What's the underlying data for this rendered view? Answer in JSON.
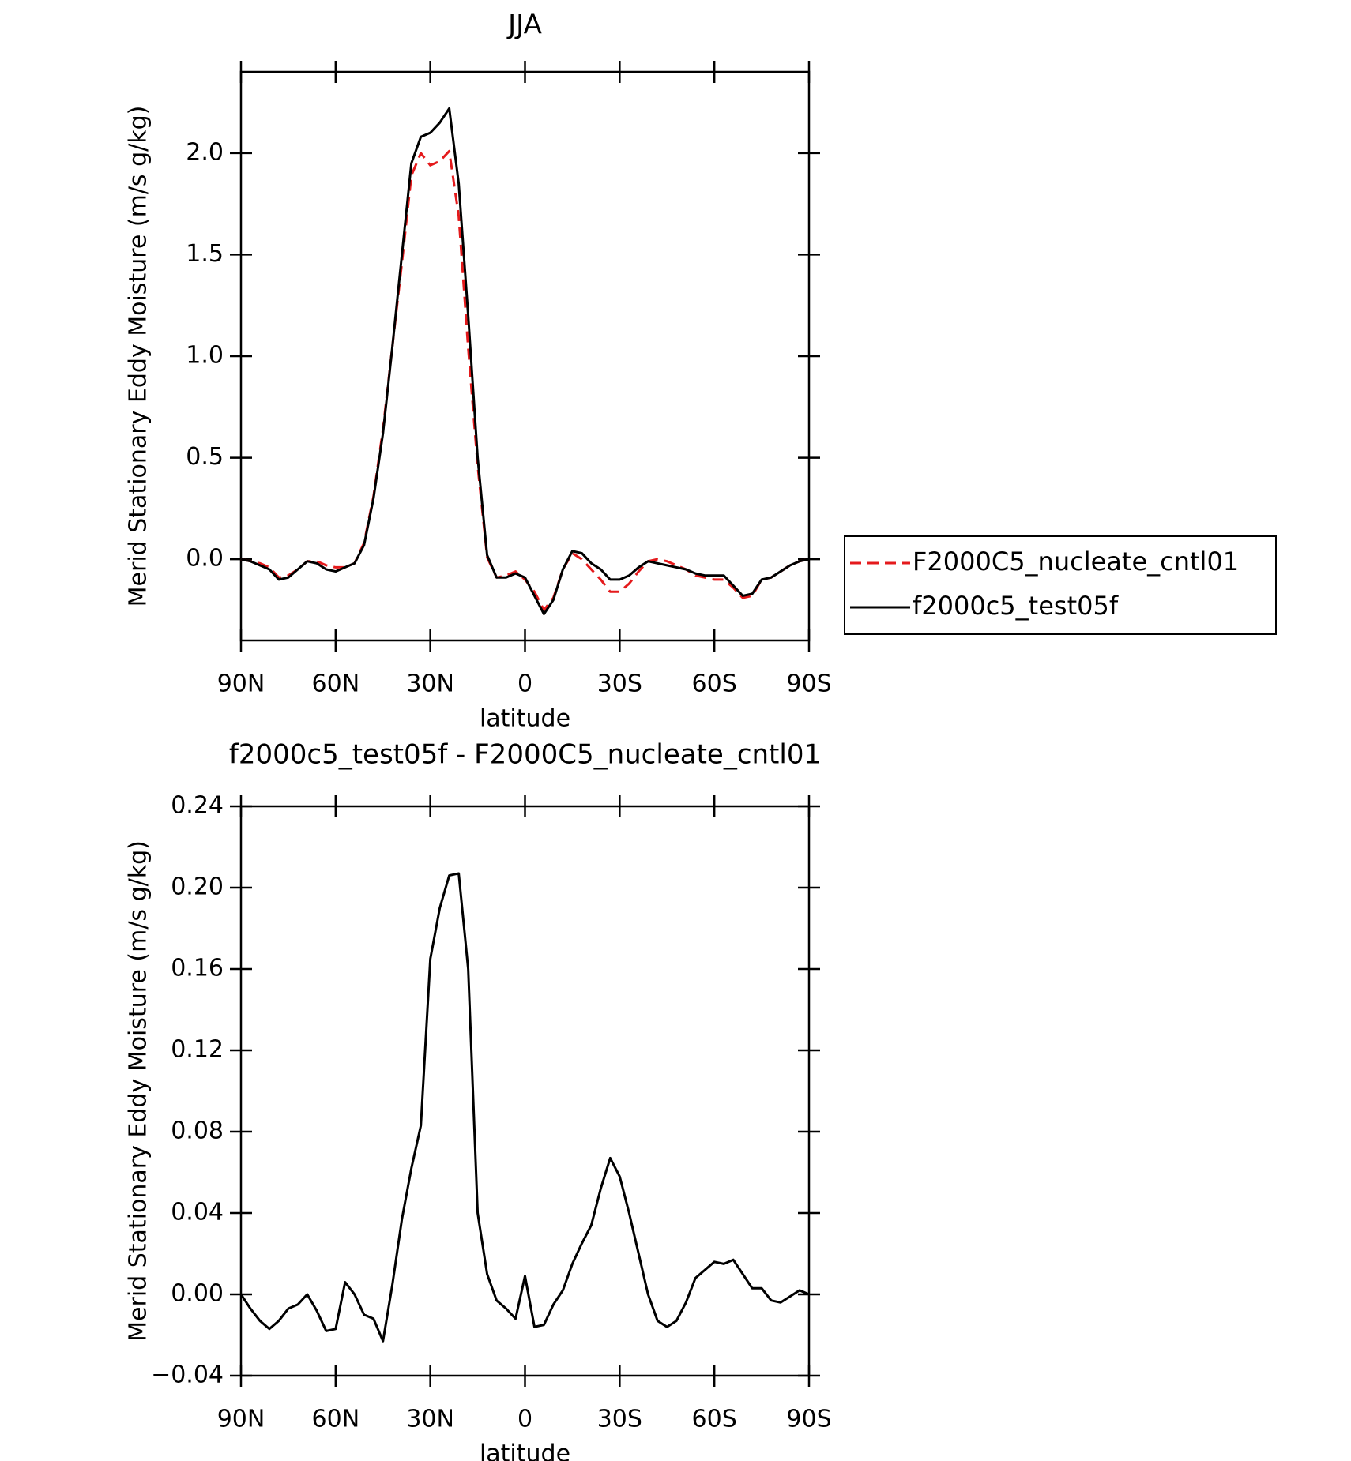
{
  "chart_data": [
    {
      "type": "line",
      "title": "JJA",
      "xlabel": "latitude",
      "ylabel": "Merid Stationary Eddy Moisture (m/s g/kg)",
      "x": [
        90,
        87,
        84,
        81,
        78,
        75,
        72,
        69,
        66,
        63,
        60,
        57,
        54,
        51,
        48,
        45,
        42,
        39,
        36,
        33,
        30,
        27,
        24,
        21,
        18,
        15,
        12,
        9,
        6,
        3,
        0,
        -3,
        -6,
        -9,
        -12,
        -15,
        -18,
        -21,
        -24,
        -27,
        -30,
        -33,
        -36,
        -39,
        -42,
        -45,
        -48,
        -51,
        -54,
        -57,
        -60,
        -63,
        -66,
        -69,
        -72,
        -75,
        -78,
        -81,
        -84,
        -87,
        -90
      ],
      "series": [
        {
          "name": "F2000C5_nucleate_cntl01",
          "color": "#e41a1c",
          "linestyle": "dashed",
          "values": [
            0.0,
            -0.01,
            -0.02,
            -0.04,
            -0.09,
            -0.08,
            -0.05,
            -0.01,
            -0.01,
            -0.03,
            -0.04,
            -0.04,
            -0.02,
            0.08,
            0.31,
            0.64,
            1.05,
            1.46,
            1.89,
            2.0,
            1.94,
            1.96,
            2.01,
            1.69,
            1.04,
            0.46,
            0.01,
            -0.09,
            -0.08,
            -0.06,
            -0.1,
            -0.16,
            -0.25,
            -0.19,
            -0.05,
            0.03,
            0.0,
            -0.05,
            -0.1,
            -0.16,
            -0.16,
            -0.12,
            -0.06,
            -0.01,
            0.0,
            -0.01,
            -0.03,
            -0.05,
            -0.08,
            -0.09,
            -0.1,
            -0.1,
            -0.14,
            -0.19,
            -0.18,
            -0.1,
            -0.09,
            -0.06,
            -0.03,
            -0.01,
            0.0
          ]
        },
        {
          "name": "f2000c5_test05f",
          "color": "#000000",
          "linestyle": "solid",
          "values": [
            0.0,
            -0.01,
            -0.03,
            -0.05,
            -0.1,
            -0.09,
            -0.05,
            -0.01,
            -0.02,
            -0.05,
            -0.06,
            -0.04,
            -0.02,
            0.07,
            0.3,
            0.62,
            1.05,
            1.5,
            1.95,
            2.08,
            2.1,
            2.15,
            2.22,
            1.85,
            1.2,
            0.5,
            0.02,
            -0.09,
            -0.09,
            -0.07,
            -0.09,
            -0.18,
            -0.27,
            -0.2,
            -0.05,
            0.04,
            0.03,
            -0.02,
            -0.05,
            -0.1,
            -0.1,
            -0.08,
            -0.04,
            -0.01,
            -0.02,
            -0.03,
            -0.04,
            -0.05,
            -0.07,
            -0.08,
            -0.08,
            -0.08,
            -0.13,
            -0.18,
            -0.17,
            -0.1,
            -0.09,
            -0.06,
            -0.03,
            -0.01,
            0.0
          ]
        }
      ],
      "xlim": [
        90,
        -90
      ],
      "xticks": [
        {
          "value": 90,
          "label": "90N"
        },
        {
          "value": 60,
          "label": "60N"
        },
        {
          "value": 30,
          "label": "30N"
        },
        0,
        {
          "value": -30,
          "label": "30S"
        },
        {
          "value": -60,
          "label": "60S"
        },
        {
          "value": -90,
          "label": "90S"
        }
      ],
      "ylim": [
        -0.4,
        2.4
      ],
      "yticks": [
        {
          "value": 0,
          "label": "0.0"
        },
        0.5,
        {
          "value": 1,
          "label": "1.0"
        },
        1.5,
        {
          "value": 2,
          "label": "2.0"
        }
      ],
      "legend": "right"
    },
    {
      "type": "line",
      "title": "f2000c5_test05f - F2000C5_nucleate_cntl01",
      "xlabel": "latitude",
      "ylabel": "Merid Stationary Eddy Moisture (m/s g/kg)",
      "x": [
        90,
        87,
        84,
        81,
        78,
        75,
        72,
        69,
        66,
        63,
        60,
        57,
        54,
        51,
        48,
        45,
        42,
        39,
        36,
        33,
        30,
        27,
        24,
        21,
        18,
        15,
        12,
        9,
        6,
        3,
        0,
        -3,
        -6,
        -9,
        -12,
        -15,
        -18,
        -21,
        -24,
        -27,
        -30,
        -33,
        -36,
        -39,
        -42,
        -45,
        -48,
        -51,
        -54,
        -57,
        -60,
        -63,
        -66,
        -69,
        -72,
        -75,
        -78,
        -81,
        -84,
        -87,
        -90
      ],
      "series": [
        {
          "color": "#000000",
          "linestyle": "solid",
          "values": [
            0.0,
            -0.007,
            -0.013,
            -0.017,
            -0.013,
            -0.007,
            -0.005,
            0.0,
            -0.008,
            -0.018,
            -0.017,
            0.006,
            0.0,
            -0.01,
            -0.012,
            -0.023,
            0.005,
            0.037,
            0.062,
            0.083,
            0.165,
            0.19,
            0.206,
            0.207,
            0.16,
            0.04,
            0.01,
            -0.003,
            -0.007,
            -0.012,
            0.009,
            -0.016,
            -0.015,
            -0.005,
            0.002,
            0.015,
            0.025,
            0.034,
            0.052,
            0.067,
            0.058,
            0.04,
            0.02,
            0.0,
            -0.013,
            -0.016,
            -0.013,
            -0.004,
            0.008,
            0.012,
            0.016,
            0.015,
            0.017,
            0.01,
            0.003,
            0.003,
            -0.003,
            -0.004,
            -0.001,
            0.002,
            0.0
          ]
        }
      ],
      "xlim": [
        90,
        -90
      ],
      "xticks": [
        {
          "value": 90,
          "label": "90N"
        },
        {
          "value": 60,
          "label": "60N"
        },
        {
          "value": 30,
          "label": "30N"
        },
        0,
        {
          "value": -30,
          "label": "30S"
        },
        {
          "value": -60,
          "label": "60S"
        },
        {
          "value": -90,
          "label": "90S"
        }
      ],
      "ylim": [
        -0.04,
        0.24
      ],
      "yticks": [
        {
          "value": -0.04,
          "label": "−0.04"
        },
        {
          "value": 0,
          "label": "0.00"
        },
        0.04,
        0.08,
        0.12,
        0.16,
        {
          "value": 0.2,
          "label": "0.20"
        },
        0.24
      ]
    }
  ]
}
